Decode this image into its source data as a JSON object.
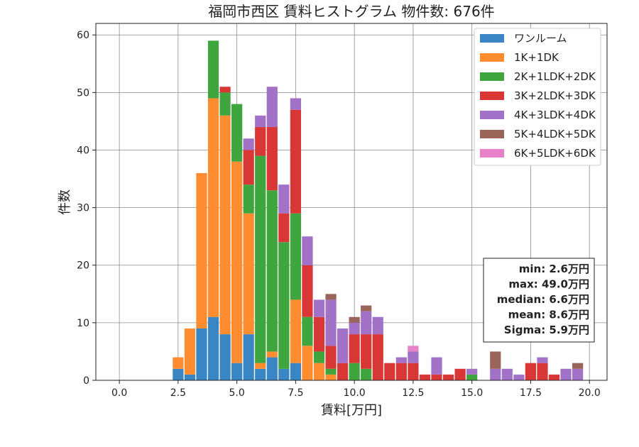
{
  "chart_data": {
    "type": "bar",
    "stacked": true,
    "title": "福岡市西区 賃料ヒストグラム 物件数: 676件",
    "xlabel": "賃料[万円]",
    "ylabel": "件数",
    "xlim": [
      -1.0,
      20.75
    ],
    "ylim": [
      0,
      62
    ],
    "xticks": [
      0.0,
      2.5,
      5.0,
      7.5,
      10.0,
      12.5,
      15.0,
      17.5,
      20.0
    ],
    "xtick_labels": [
      "0.0",
      "2.5",
      "5.0",
      "7.5",
      "10.0",
      "12.5",
      "15.0",
      "17.5",
      "20.0"
    ],
    "yticks": [
      0,
      10,
      20,
      30,
      40,
      50,
      60
    ],
    "ytick_labels": [
      "0",
      "10",
      "20",
      "30",
      "40",
      "50",
      "60"
    ],
    "grid": true,
    "legend_position": "top-right",
    "bin_width": 0.5,
    "x": [
      2.5,
      3.0,
      3.5,
      4.0,
      4.5,
      5.0,
      5.5,
      6.0,
      6.5,
      7.0,
      7.5,
      8.0,
      8.5,
      9.0,
      9.5,
      10.0,
      10.5,
      11.0,
      11.5,
      12.0,
      12.5,
      13.0,
      13.5,
      14.0,
      14.5,
      15.0,
      16.0,
      16.5,
      17.0,
      17.5,
      18.0,
      18.5,
      19.0,
      19.5
    ],
    "series": [
      {
        "name": "ワンルーム",
        "color": "#3a86c4",
        "values": [
          2,
          1,
          9,
          11,
          8,
          3,
          8,
          2,
          4,
          2,
          3,
          0,
          0,
          0,
          0,
          0,
          0,
          0,
          0,
          0,
          0,
          0,
          0,
          0,
          0,
          0,
          0,
          0,
          0,
          0,
          0,
          0,
          0,
          0
        ]
      },
      {
        "name": "1K+1DK",
        "color": "#ff8c2e",
        "values": [
          2,
          8,
          27,
          38,
          38,
          35,
          21,
          1,
          1,
          0,
          11,
          6,
          3,
          1,
          0,
          0,
          0,
          0,
          0,
          0,
          0,
          0,
          0,
          0,
          0,
          0,
          0,
          0,
          0,
          0,
          0,
          0,
          0,
          0
        ]
      },
      {
        "name": "2K+1LDK+2DK",
        "color": "#3fa63f",
        "values": [
          0,
          0,
          0,
          10,
          4,
          10,
          5,
          36,
          28,
          22,
          15,
          5,
          2,
          1,
          0,
          3,
          2,
          0,
          0,
          0,
          0,
          0,
          0,
          0,
          0,
          1,
          0,
          0,
          0,
          0,
          0,
          0,
          0,
          0
        ]
      },
      {
        "name": "3K+2LDK+3DK",
        "color": "#d93636",
        "values": [
          0,
          0,
          0,
          0,
          1,
          0,
          6,
          5,
          11,
          5,
          18,
          9,
          6,
          4,
          3,
          5,
          6,
          8,
          3,
          3,
          3,
          1,
          1,
          1,
          2,
          0,
          0,
          0,
          0,
          3,
          3,
          1,
          0,
          0
        ]
      },
      {
        "name": "4K+3LDK+4DK",
        "color": "#a272c8",
        "values": [
          0,
          0,
          0,
          0,
          0,
          0,
          2,
          2,
          7,
          5,
          2,
          5,
          3,
          8,
          6,
          2,
          4,
          3,
          0,
          1,
          2,
          0,
          3,
          0,
          0,
          1,
          2,
          2,
          1,
          0,
          1,
          0,
          2,
          2
        ]
      },
      {
        "name": "5K+4LDK+5DK",
        "color": "#9a6458",
        "values": [
          0,
          0,
          0,
          0,
          0,
          0,
          0,
          0,
          0,
          0,
          0,
          0,
          0,
          1,
          0,
          1,
          1,
          0,
          0,
          0,
          0,
          0,
          0,
          0,
          0,
          0,
          3,
          0,
          0,
          0,
          0,
          0,
          0,
          1
        ]
      },
      {
        "name": "6K+5LDK+6DK",
        "color": "#e882c8",
        "values": [
          0,
          0,
          0,
          0,
          0,
          0,
          0,
          0,
          0,
          0,
          0,
          0,
          0,
          0,
          0,
          0,
          0,
          0,
          0,
          0,
          1,
          0,
          0,
          0,
          0,
          0,
          0,
          0,
          0,
          0,
          0,
          0,
          0,
          0
        ]
      }
    ],
    "stats": [
      "min: 2.6万円",
      "max: 49.0万円",
      "median: 6.6万円",
      "mean: 8.6万円",
      "Sigma: 5.9万円"
    ]
  }
}
